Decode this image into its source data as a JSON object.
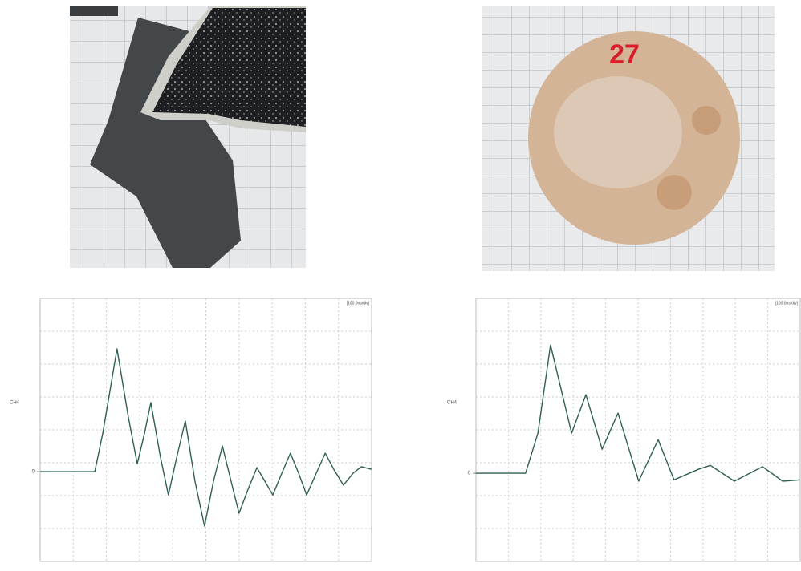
{
  "photo_label": "27",
  "chart_data": [
    {
      "type": "line",
      "y_label": "CH4",
      "annotation": "[100.0ns/div]",
      "xlim": [
        0,
        10
      ],
      "ylim": [
        -2.73,
        5.27
      ],
      "yticks": [
        0
      ],
      "color": "#2f5f55",
      "x": [
        0,
        1.65,
        1.89,
        2.32,
        2.66,
        2.93,
        3.15,
        3.34,
        3.63,
        3.87,
        4.12,
        4.38,
        4.67,
        4.96,
        5.23,
        5.5,
        5.76,
        6.0,
        6.27,
        6.54,
        6.78,
        7.02,
        7.29,
        7.55,
        7.8,
        8.04,
        8.33,
        8.6,
        8.86,
        9.15,
        9.44,
        9.69,
        10
      ],
      "values": [
        0,
        0,
        1.17,
        3.73,
        1.66,
        0.24,
        1.17,
        2.1,
        0.44,
        -0.71,
        0.44,
        1.54,
        -0.29,
        -1.66,
        -0.29,
        0.78,
        -0.29,
        -1.27,
        -0.54,
        0.12,
        -0.29,
        -0.71,
        -0.05,
        0.56,
        -0.05,
        -0.71,
        -0.05,
        0.56,
        0.07,
        -0.41,
        -0.05,
        0.15,
        0.07
      ]
    },
    {
      "type": "line",
      "y_label": "CH4",
      "annotation": "[100.0ns/div]",
      "xlim": [
        0,
        10
      ],
      "ylim": [
        -2.68,
        5.32
      ],
      "yticks": [
        0
      ],
      "color": "#2f5f55",
      "x": [
        0,
        1.53,
        1.91,
        2.3,
        2.95,
        3.39,
        3.89,
        4.38,
        5.02,
        5.62,
        6.11,
        6.86,
        7.23,
        7.97,
        8.84,
        9.46,
        10
      ],
      "values": [
        0,
        0,
        1.22,
        3.9,
        1.22,
        2.39,
        0.73,
        1.83,
        -0.24,
        1.02,
        -0.2,
        0.12,
        0.24,
        -0.24,
        0.2,
        -0.24,
        -0.2
      ]
    }
  ]
}
